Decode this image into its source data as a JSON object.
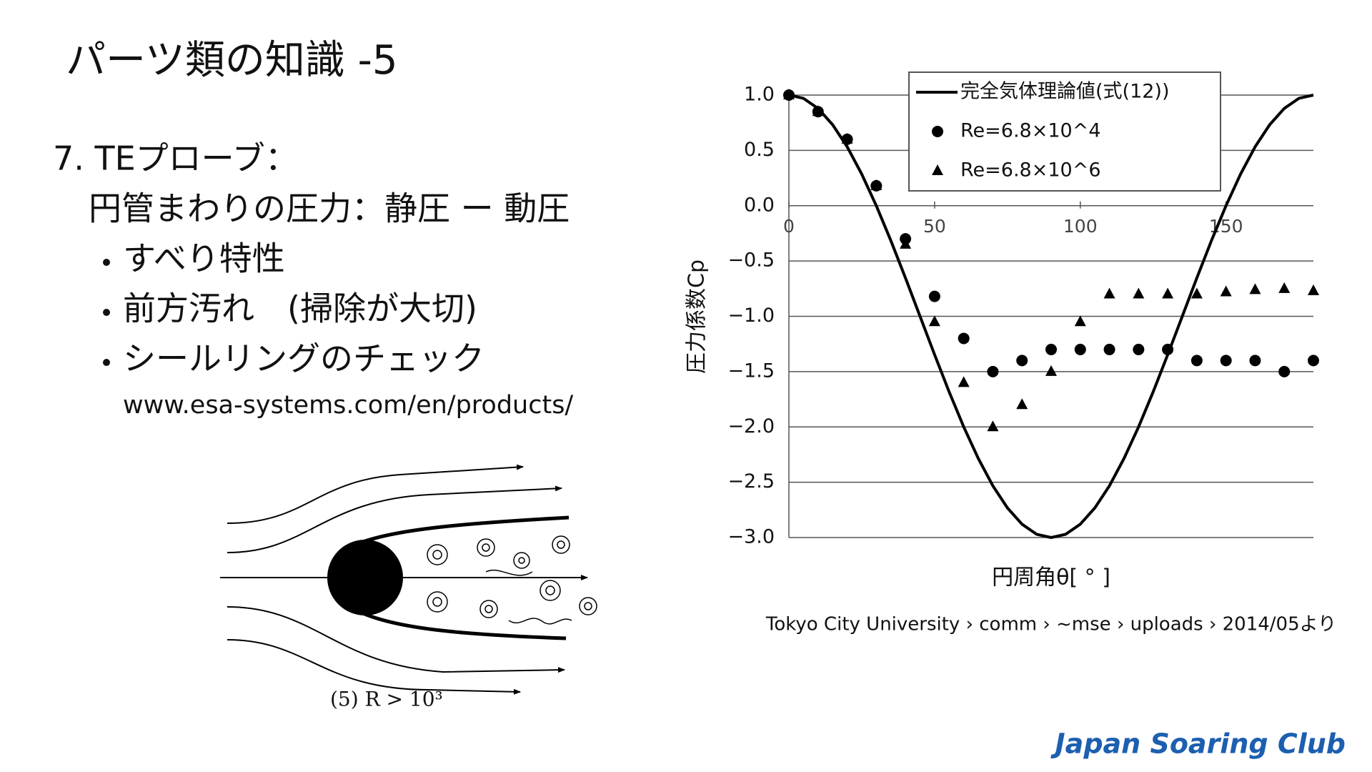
{
  "slide": {
    "title": "パーツ類の知識 -5",
    "heading": "7. TEプローブ：",
    "subheading": "円管まわりの圧力：静圧 ー 動圧",
    "bullets": [
      "すべり特性",
      "前方汚れ　(掃除が大切)",
      "シールリングのチェック"
    ],
    "url": "www.esa-systems.com/en/products/",
    "figure_caption": "(5) R > 10³",
    "source": "Tokyo City University › comm › ~mse › uploads › 2014/05より",
    "footer": "Japan Soaring Club"
  },
  "chart_data": {
    "type": "line",
    "xlabel": "円周角θ[ ° ]",
    "ylabel": "圧力係数Cp",
    "xlim": [
      0,
      180
    ],
    "xticks": [
      0,
      50,
      100,
      150
    ],
    "ylim": [
      -3,
      1
    ],
    "yticks": [
      {
        "value": 1,
        "label": "1.0"
      },
      {
        "value": 0.5,
        "label": "0.5"
      },
      {
        "value": 0,
        "label": "0.0"
      },
      {
        "value": -0.5,
        "label": "−0.5"
      },
      {
        "value": -1,
        "label": "−1.0"
      },
      {
        "value": -1.5,
        "label": "−1.5"
      },
      {
        "value": -2,
        "label": "−2.0"
      },
      {
        "value": -2.5,
        "label": "−2.5"
      },
      {
        "value": -3,
        "label": "−3.0"
      }
    ],
    "grid": true,
    "series": [
      {
        "name": "完全気体理論値(式(12))",
        "color": "#000000",
        "marker": "none",
        "x": [
          0,
          5,
          10,
          15,
          20,
          25,
          30,
          35,
          40,
          45,
          50,
          55,
          60,
          65,
          70,
          75,
          80,
          85,
          90,
          95,
          100,
          105,
          110,
          115,
          120,
          125,
          130,
          135,
          140,
          145,
          150,
          155,
          160,
          165,
          170,
          175,
          180
        ],
        "values": [
          1,
          0.97,
          0.879,
          0.732,
          0.532,
          0.286,
          0,
          -0.316,
          -0.653,
          -1,
          -1.347,
          -1.684,
          -2,
          -2.286,
          -2.532,
          -2.732,
          -2.879,
          -2.97,
          -3,
          -2.97,
          -2.879,
          -2.732,
          -2.532,
          -2.286,
          -2,
          -1.684,
          -1.347,
          -1,
          -0.653,
          -0.316,
          0,
          0.286,
          0.532,
          0.732,
          0.879,
          0.97,
          1
        ]
      },
      {
        "name": "Re=6.8×10^4",
        "color": "#000000",
        "marker": "circle",
        "x": [
          0,
          10,
          20,
          30,
          40,
          50,
          60,
          70,
          80,
          90,
          100,
          110,
          120,
          130,
          140,
          150,
          160,
          170,
          180
        ],
        "values": [
          1.0,
          0.85,
          0.6,
          0.18,
          -0.3,
          -0.82,
          -1.2,
          -1.5,
          -1.4,
          -1.3,
          -1.3,
          -1.3,
          -1.3,
          -1.3,
          -1.4,
          -1.4,
          -1.4,
          -1.5,
          -1.4
        ]
      },
      {
        "name": "Re=6.8×10^6",
        "color": "#000000",
        "marker": "triangle",
        "x": [
          0,
          10,
          20,
          30,
          40,
          50,
          60,
          70,
          80,
          90,
          100,
          110,
          120,
          130,
          140,
          150,
          160,
          170,
          180
        ],
        "values": [
          1.0,
          0.85,
          0.6,
          0.18,
          -0.35,
          -1.05,
          -1.6,
          -2.0,
          -1.8,
          -1.5,
          -1.05,
          -0.8,
          -0.8,
          -0.8,
          -0.8,
          -0.78,
          -0.76,
          -0.75,
          -0.77
        ]
      }
    ]
  }
}
